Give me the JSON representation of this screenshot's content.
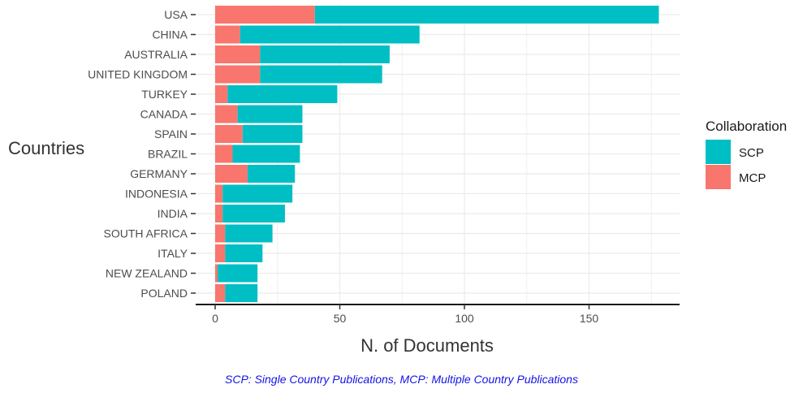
{
  "chart_data": {
    "type": "bar",
    "orientation": "horizontal",
    "stacked": true,
    "categories": [
      "USA",
      "CHINA",
      "AUSTRALIA",
      "UNITED KINGDOM",
      "TURKEY",
      "CANADA",
      "SPAIN",
      "BRAZIL",
      "GERMANY",
      "INDONESIA",
      "INDIA",
      "SOUTH AFRICA",
      "ITALY",
      "NEW ZEALAND",
      "POLAND"
    ],
    "series": [
      {
        "name": "MCP",
        "color": "#F8766D",
        "values": [
          40,
          10,
          18,
          18,
          5,
          9,
          11,
          7,
          13,
          3,
          3,
          4,
          4,
          1,
          4
        ]
      },
      {
        "name": "SCP",
        "color": "#00BFC4",
        "values": [
          138,
          72,
          52,
          49,
          44,
          26,
          24,
          27,
          19,
          28,
          25,
          19,
          15,
          16,
          13
        ]
      }
    ],
    "xlabel": "N. of Documents",
    "ylabel": "Countries",
    "xlim": [
      -8,
      186
    ],
    "xticks": [
      0,
      50,
      100,
      150
    ],
    "grid": true,
    "legend": {
      "title": "Collaboration",
      "placement": "right",
      "order": [
        "SCP",
        "MCP"
      ]
    },
    "caption": "SCP: Single Country Publications, MCP: Multiple Country Publications"
  }
}
